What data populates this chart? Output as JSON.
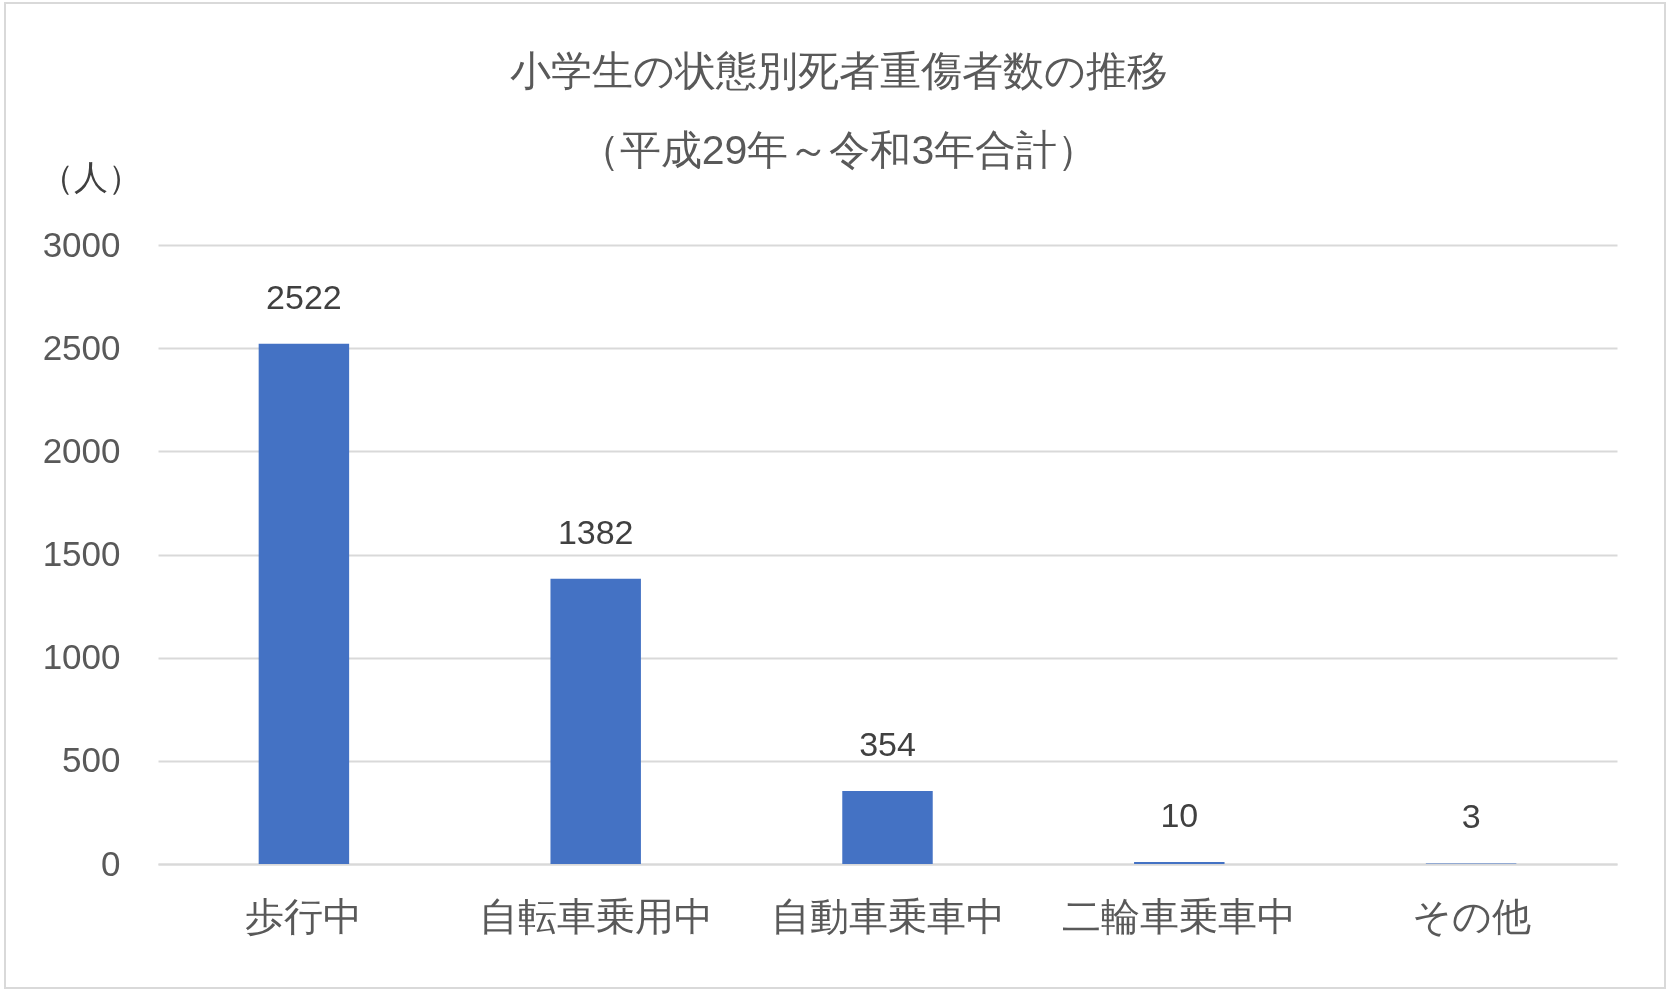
{
  "chart_data": {
    "type": "bar",
    "title": "小学生の状態別死者重傷者数の推移",
    "subtitle": "（平成29年～令和3年合計）",
    "ylabel": "（人）",
    "categories": [
      "歩行中",
      "自転車乗用中",
      "自動車乗車中",
      "二輪車乗車中",
      "その他"
    ],
    "values": [
      2522,
      1382,
      354,
      10,
      3
    ],
    "color": "#4472c4",
    "ylim": [
      0,
      3000
    ],
    "yticks": [
      0,
      500,
      1000,
      1500,
      2000,
      2500,
      3000
    ],
    "grid": "y",
    "data_labels": true
  }
}
